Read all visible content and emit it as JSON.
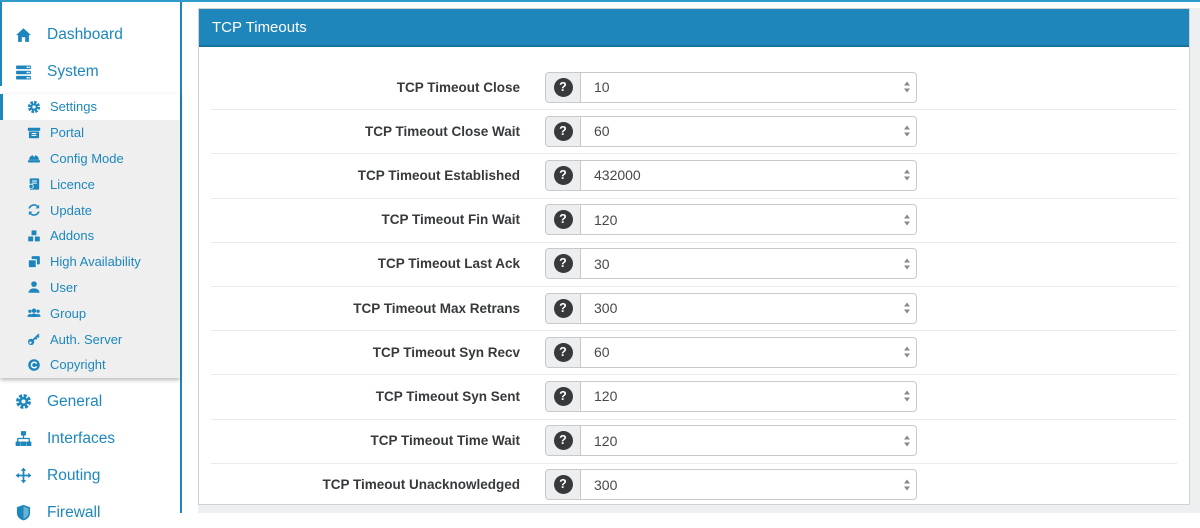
{
  "colors": {
    "accent": "#1d87bd",
    "top_line": "#2e9bca",
    "panel_header_bg": "#1e86bb",
    "submenu_bg": "#efefef",
    "content_bg": "#edeff0",
    "addon_bg": "#eceeef",
    "help_circle_bg": "#373a3c",
    "row_separator": "#e9ecef"
  },
  "sidebar": {
    "top_items": [
      {
        "label": "Dashboard",
        "icon": "home"
      },
      {
        "label": "System",
        "icon": "server"
      }
    ],
    "submenu_items": [
      {
        "label": "Settings",
        "icon": "gear",
        "active": true
      },
      {
        "label": "Portal",
        "icon": "archive"
      },
      {
        "label": "Config Mode",
        "icon": "hardhat"
      },
      {
        "label": "Licence",
        "icon": "licence"
      },
      {
        "label": "Update",
        "icon": "sync"
      },
      {
        "label": "Addons",
        "icon": "cubes"
      },
      {
        "label": "High Availability",
        "icon": "clone"
      },
      {
        "label": "User",
        "icon": "user"
      },
      {
        "label": "Group",
        "icon": "group"
      },
      {
        "label": "Auth. Server",
        "icon": "key"
      },
      {
        "label": "Copyright",
        "icon": "copyright"
      }
    ],
    "bottom_items": [
      {
        "label": "General",
        "icon": "gear"
      },
      {
        "label": "Interfaces",
        "icon": "sitemap"
      },
      {
        "label": "Routing",
        "icon": "move"
      },
      {
        "label": "Firewall",
        "icon": "shield"
      }
    ]
  },
  "panel": {
    "title": "TCP Timeouts",
    "help_glyph": "?",
    "rows": [
      {
        "label": "TCP Timeout Close",
        "value": "10"
      },
      {
        "label": "TCP Timeout Close Wait",
        "value": "60"
      },
      {
        "label": "TCP Timeout Established",
        "value": "432000"
      },
      {
        "label": "TCP Timeout Fin Wait",
        "value": "120"
      },
      {
        "label": "TCP Timeout Last Ack",
        "value": "30"
      },
      {
        "label": "TCP Timeout Max Retrans",
        "value": "300"
      },
      {
        "label": "TCP Timeout Syn Recv",
        "value": "60"
      },
      {
        "label": "TCP Timeout Syn Sent",
        "value": "120"
      },
      {
        "label": "TCP Timeout Time Wait",
        "value": "120"
      },
      {
        "label": "TCP Timeout Unacknowledged",
        "value": "300"
      }
    ]
  }
}
